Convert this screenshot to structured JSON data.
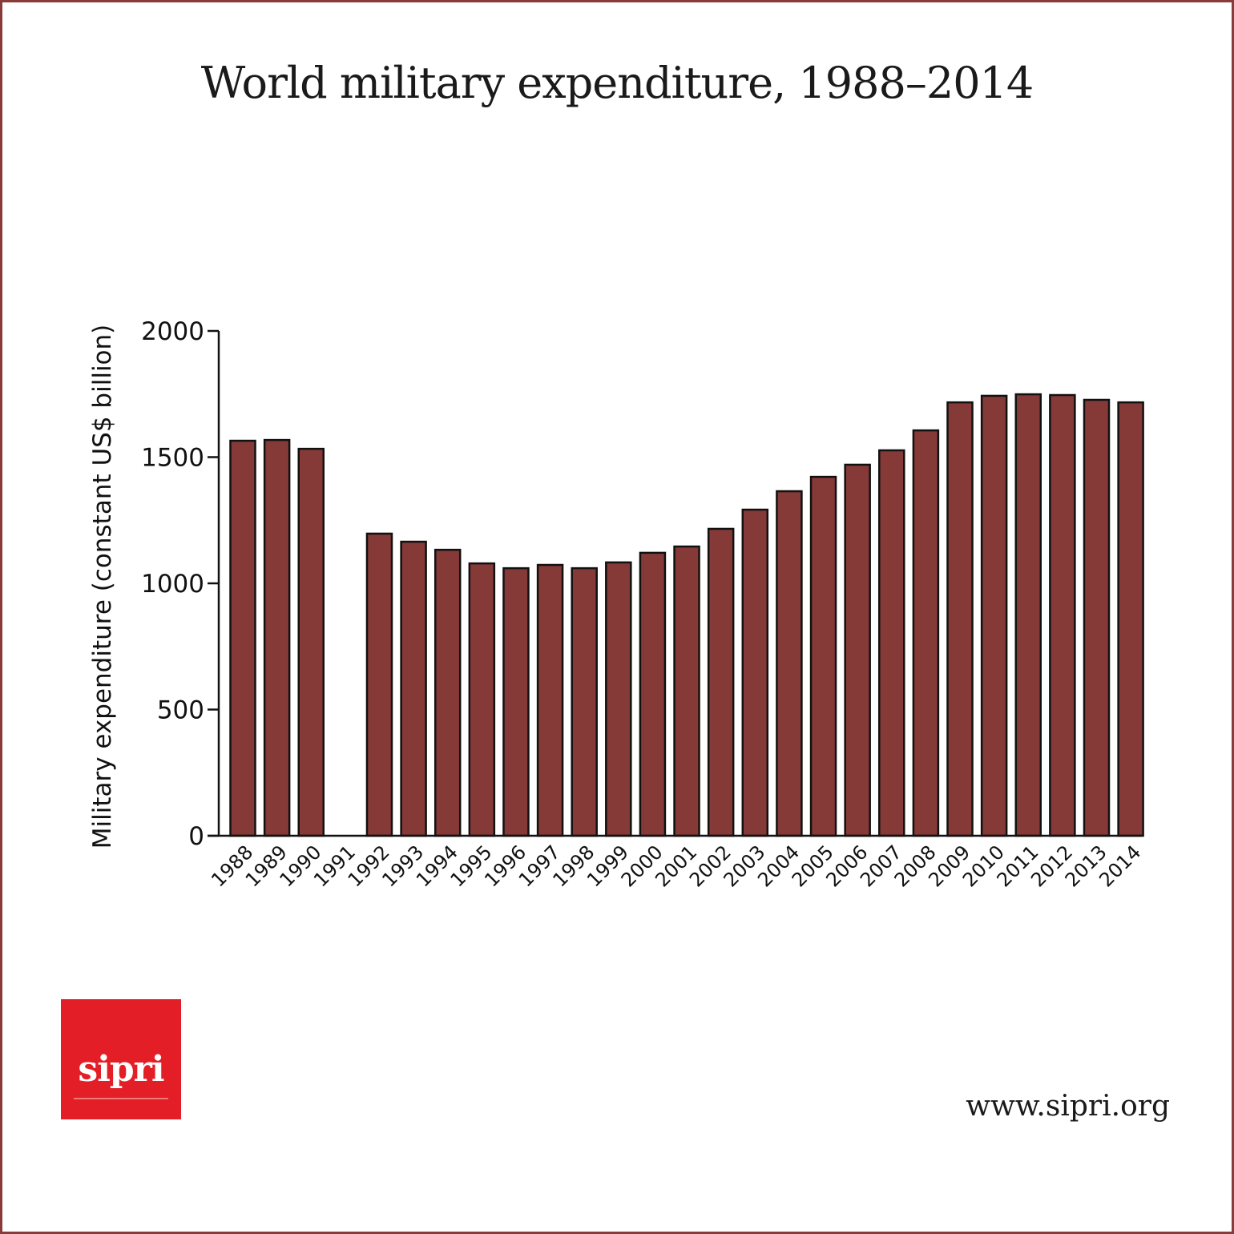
{
  "title": "World military expenditure, 1988–2014",
  "logo": {
    "text": "sipri",
    "color": "#e41e26"
  },
  "footer": {
    "url": "www.sipri.org"
  },
  "colors": {
    "frame": "#8b3a3a",
    "bar_fill": "#853a37",
    "bar_stroke": "#111111"
  },
  "chart_data": {
    "type": "bar",
    "title": "World military expenditure, 1988–2014",
    "xlabel": "",
    "ylabel": "Military expenditure (constant US$ billion)",
    "ylim": [
      0,
      2000
    ],
    "yticks": [
      0,
      500,
      1000,
      1500,
      2000
    ],
    "grid": false,
    "categories": [
      "1988",
      "1989",
      "1990",
      "1991",
      "1992",
      "1993",
      "1994",
      "1995",
      "1996",
      "1997",
      "1998",
      "1999",
      "2000",
      "2001",
      "2002",
      "2003",
      "2004",
      "2005",
      "2006",
      "2007",
      "2008",
      "2009",
      "2010",
      "2011",
      "2012",
      "2013",
      "2014"
    ],
    "values": [
      1565,
      1568,
      1533,
      null,
      1197,
      1165,
      1133,
      1079,
      1060,
      1073,
      1060,
      1083,
      1121,
      1146,
      1216,
      1292,
      1365,
      1422,
      1470,
      1527,
      1606,
      1717,
      1743,
      1749,
      1746,
      1727,
      1717
    ]
  }
}
